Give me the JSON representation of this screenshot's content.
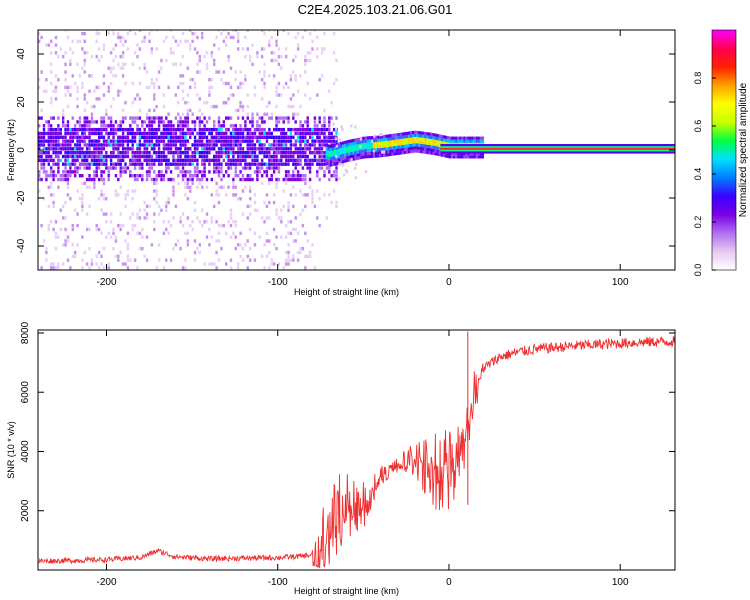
{
  "title": "C2E4.2025.103.21.06.G01",
  "chart_data": [
    {
      "type": "heatmap",
      "xlabel": "Height of straight line (km)",
      "ylabel": "Frequency (Hz)",
      "xlim": [
        -240,
        132
      ],
      "ylim": [
        -50,
        50
      ],
      "xticks": [
        -200,
        -100,
        0,
        100
      ],
      "yticks": [
        -40,
        -20,
        0,
        20,
        40
      ],
      "colorbar": {
        "label": "Normalized spectral amplitude",
        "range": [
          0,
          1
        ],
        "ticks": [
          0.0,
          0.2,
          0.4,
          0.6,
          0.8
        ],
        "colors": [
          "#ffffff",
          "#e8c8f0",
          "#b070f0",
          "#7a00e6",
          "#3a00ff",
          "#0080ff",
          "#00e0ff",
          "#00ff40",
          "#c8ff00",
          "#ffff00",
          "#ffa000",
          "#ff2000",
          "#ff0050",
          "#ff00ff"
        ]
      },
      "series": [
        {
          "x": [
            -240,
            -200,
            -150,
            -100,
            -80,
            -70,
            -60,
            -50,
            -40,
            -30,
            -20,
            -10,
            0,
            10,
            20,
            50,
            100,
            132
          ],
          "y": [
            0,
            0,
            0,
            0,
            0,
            -3,
            -1,
            0.5,
            1,
            2,
            3,
            2,
            0.5,
            0.5,
            0.5,
            0.5,
            0.5,
            0.5
          ]
        }
      ]
    },
    {
      "type": "line",
      "xlabel": "Height of straight line (km)",
      "ylabel": "SNR (10 * v/v)",
      "xlim": [
        -240,
        132
      ],
      "ylim": [
        0,
        8100
      ],
      "xticks": [
        -200,
        -100,
        0,
        100
      ],
      "yticks": [
        2000,
        4000,
        6000,
        8000
      ],
      "color": "#ee3030",
      "series": [
        {
          "x": [
            -240,
            -220,
            -200,
            -180,
            -170,
            -160,
            -140,
            -120,
            -100,
            -90,
            -80,
            -75,
            -70,
            -60,
            -50,
            -40,
            -30,
            -20,
            -10,
            0,
            5,
            10,
            15,
            20,
            30,
            40,
            50,
            70,
            90,
            110,
            132
          ],
          "y": [
            300,
            320,
            350,
            420,
            650,
            450,
            380,
            400,
            420,
            450,
            500,
            900,
            1600,
            2400,
            2200,
            3200,
            3600,
            3900,
            3500,
            3700,
            4000,
            4800,
            6200,
            6800,
            7200,
            7350,
            7450,
            7550,
            7620,
            7680,
            7720
          ]
        }
      ]
    }
  ]
}
